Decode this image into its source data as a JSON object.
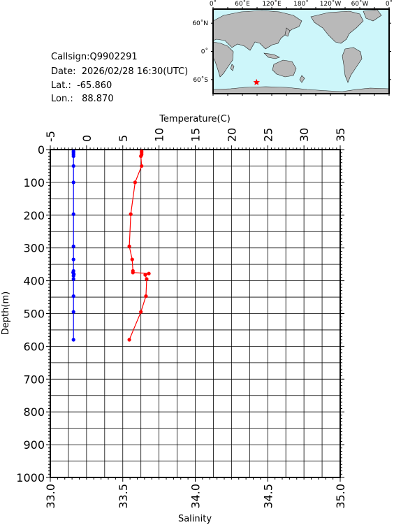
{
  "header": {
    "callsign": "Callsign:Q9902291",
    "date": "Date:  2026/02/28 16:30(UTC)",
    "lat": "Lat.:  -65.860",
    "lon": "Lon.:   88.870"
  },
  "map": {
    "top_labels": [
      "0˚",
      "60˚E",
      "120˚E",
      "180˚",
      "120˚W",
      "60˚W",
      "0˚"
    ],
    "left_labels": [
      "60˚N",
      "0˚",
      "60˚S"
    ],
    "ocean_color": "#cdf6fa",
    "land_color": "#b9b9b9",
    "station_marker_color": "#ff0000",
    "station_icon": "star-icon"
  },
  "chart_data": {
    "type": "line",
    "top_axis": {
      "title": "Temperature(C)",
      "range": [
        -5,
        35
      ],
      "ticks": [
        "-5",
        "0",
        "5",
        "10",
        "15",
        "20",
        "25",
        "30",
        "35"
      ]
    },
    "bottom_axis": {
      "title": "Salinity",
      "range": [
        33.0,
        35.0
      ],
      "ticks": [
        "33.0",
        "33.5",
        "34.0",
        "34.5",
        "35.0"
      ]
    },
    "y_axis": {
      "title": "Depth(m)",
      "range": [
        0,
        1000
      ],
      "inverted": true,
      "ticks": [
        "0",
        "100",
        "200",
        "300",
        "400",
        "500",
        "600",
        "700",
        "800",
        "900",
        "1000"
      ]
    },
    "grid": true,
    "series": [
      {
        "color": "#0000ff",
        "axis": "temperature",
        "points": [
          {
            "x": -1.8,
            "y": 5
          },
          {
            "x": -1.8,
            "y": 10
          },
          {
            "x": -1.8,
            "y": 15
          },
          {
            "x": -1.8,
            "y": 20
          },
          {
            "x": -1.8,
            "y": 50
          },
          {
            "x": -1.8,
            "y": 100
          },
          {
            "x": -1.8,
            "y": 197
          },
          {
            "x": -1.8,
            "y": 295
          },
          {
            "x": -1.8,
            "y": 335
          },
          {
            "x": -1.8,
            "y": 370
          },
          {
            "x": -1.85,
            "y": 375
          },
          {
            "x": -1.75,
            "y": 380
          },
          {
            "x": -1.8,
            "y": 385
          },
          {
            "x": -1.8,
            "y": 395
          },
          {
            "x": -1.8,
            "y": 447
          },
          {
            "x": -1.8,
            "y": 495
          },
          {
            "x": -1.8,
            "y": 580
          }
        ]
      },
      {
        "color": "#ff0000",
        "axis": "temperature",
        "points": [
          {
            "x": 7.6,
            "y": 5
          },
          {
            "x": 7.6,
            "y": 10
          },
          {
            "x": 7.6,
            "y": 15
          },
          {
            "x": 7.5,
            "y": 20
          },
          {
            "x": 7.6,
            "y": 50
          },
          {
            "x": 6.7,
            "y": 100
          },
          {
            "x": 6.1,
            "y": 197
          },
          {
            "x": 5.9,
            "y": 295
          },
          {
            "x": 6.3,
            "y": 335
          },
          {
            "x": 6.4,
            "y": 370
          },
          {
            "x": 6.4,
            "y": 375
          },
          {
            "x": 8.6,
            "y": 378
          },
          {
            "x": 8.1,
            "y": 382
          },
          {
            "x": 8.3,
            "y": 395
          },
          {
            "x": 8.2,
            "y": 447
          },
          {
            "x": 7.5,
            "y": 495
          },
          {
            "x": 5.9,
            "y": 580
          }
        ]
      }
    ]
  }
}
